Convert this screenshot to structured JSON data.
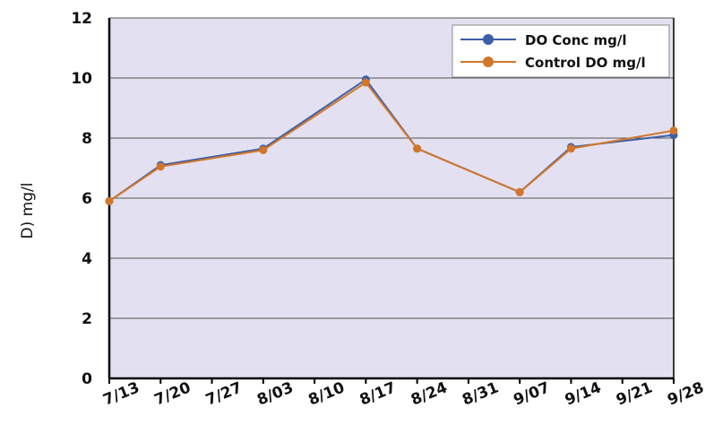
{
  "chart_data": {
    "type": "line",
    "ylabel": "D) mg/l",
    "xlabel": "",
    "ylim": [
      0,
      12
    ],
    "yticks": [
      "0",
      "2",
      "4",
      "6",
      "8",
      "10",
      "12"
    ],
    "categories": [
      "7/13",
      "7/20",
      "7/27",
      "8/03",
      "8/10",
      "8/17",
      "8/24",
      "8/31",
      "9/07",
      "9/14",
      "9/21",
      "9/28"
    ],
    "grid": "horizontal",
    "legend_position": "top-right",
    "series": [
      {
        "name": "DO Conc mg/l",
        "color": "#3d5fa8",
        "points": [
          {
            "x": "7/13",
            "y": 5.9
          },
          {
            "x": "7/20",
            "y": 7.1
          },
          {
            "x": "8/03",
            "y": 7.65
          },
          {
            "x": "8/17",
            "y": 9.95
          },
          {
            "x": "8/24",
            "y": 7.65
          },
          {
            "x": "9/07",
            "y": 6.2
          },
          {
            "x": "9/14",
            "y": 7.7
          },
          {
            "x": "9/28",
            "y": 8.1
          }
        ]
      },
      {
        "name": "Control DO mg/l",
        "color": "#d2772a",
        "points": [
          {
            "x": "7/13",
            "y": 5.9
          },
          {
            "x": "7/20",
            "y": 7.05
          },
          {
            "x": "8/03",
            "y": 7.6
          },
          {
            "x": "8/17",
            "y": 9.85
          },
          {
            "x": "8/24",
            "y": 7.65
          },
          {
            "x": "9/07",
            "y": 6.2
          },
          {
            "x": "9/14",
            "y": 7.65
          },
          {
            "x": "9/28",
            "y": 8.25
          }
        ]
      }
    ],
    "plot_background": "#e3e1f1"
  }
}
